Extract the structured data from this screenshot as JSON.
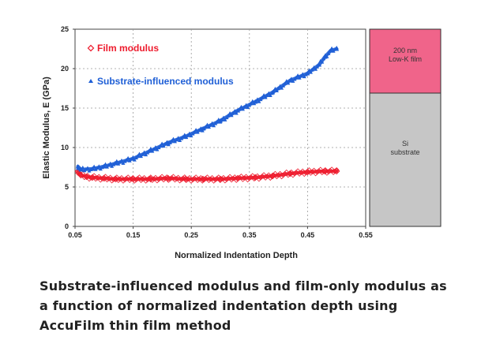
{
  "chart_data": {
    "type": "scatter",
    "title": "",
    "xlabel": "Normalized Indentation Depth",
    "ylabel": "Elastic Modulus, E (GPa)",
    "xlim": [
      0.05,
      0.55
    ],
    "ylim": [
      0,
      25
    ],
    "xticks": [
      "0.05",
      "0.15",
      "0.25",
      "0.35",
      "0.45",
      "0.55"
    ],
    "yticks": [
      "0",
      "5",
      "10",
      "15",
      "20",
      "25"
    ],
    "grid": true,
    "legend_position": "top-left",
    "series": [
      {
        "name": "Film modulus",
        "marker": "◇",
        "color": "#ee1c2e",
        "x": [
          0.055,
          0.06,
          0.07,
          0.08,
          0.1,
          0.12,
          0.15,
          0.18,
          0.21,
          0.24,
          0.27,
          0.3,
          0.33,
          0.36,
          0.39,
          0.42,
          0.45,
          0.48,
          0.5
        ],
        "y": [
          7.0,
          6.5,
          6.3,
          6.2,
          6.1,
          6.0,
          6.0,
          6.0,
          6.1,
          6.0,
          6.0,
          6.0,
          6.1,
          6.2,
          6.4,
          6.7,
          6.9,
          7.0,
          7.0
        ]
      },
      {
        "name": "Substrate-influenced modulus",
        "marker": "▲",
        "color": "#1f5fd6",
        "x": [
          0.055,
          0.06,
          0.08,
          0.1,
          0.12,
          0.15,
          0.18,
          0.21,
          0.24,
          0.27,
          0.3,
          0.33,
          0.36,
          0.39,
          0.42,
          0.45,
          0.47,
          0.48,
          0.49,
          0.5
        ],
        "y": [
          7.6,
          7.2,
          7.3,
          7.6,
          8.0,
          8.6,
          9.6,
          10.6,
          11.4,
          12.4,
          13.4,
          14.7,
          15.8,
          17.0,
          18.5,
          19.4,
          20.5,
          21.5,
          22.3,
          22.5
        ]
      }
    ]
  },
  "layers": {
    "top": "200 nm\nLow-K film",
    "bottom": "Si\nsubstrate",
    "top_color": "#f0648a",
    "bottom_color": "#c6c6c6"
  },
  "caption": "Substrate-influenced modulus and film-only modulus as a function of normalized indentation depth using AccuFilm thin film method"
}
